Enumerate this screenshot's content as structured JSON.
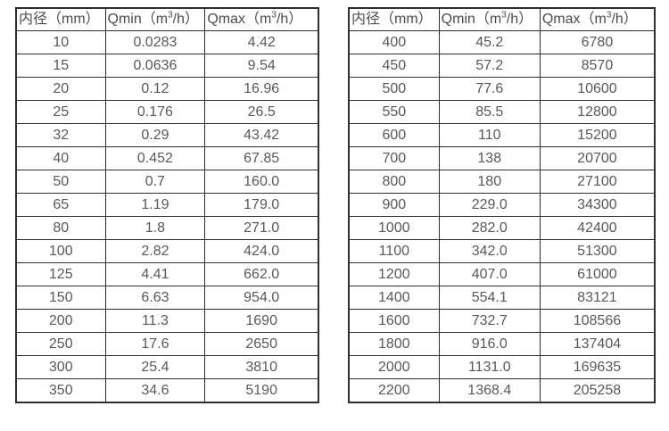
{
  "colors": {
    "background": "#ffffff",
    "border": "#2e2e2e",
    "header_text": "#4d4d4d",
    "cell_text": "#595959"
  },
  "tables": [
    {
      "name": "flow-range-table-small-diameters",
      "headers": [
        {
          "pre": "内径（mm）",
          "sup": "",
          "post": ""
        },
        {
          "pre": "Qmin（m",
          "sup": "3",
          "post": "/h）"
        },
        {
          "pre": "Qmax（m",
          "sup": "3",
          "post": "/h）"
        }
      ],
      "rows": [
        [
          "10",
          "0.0283",
          "4.42"
        ],
        [
          "15",
          "0.0636",
          "9.54"
        ],
        [
          "20",
          "0.12",
          "16.96"
        ],
        [
          "25",
          "0.176",
          "26.5"
        ],
        [
          "32",
          "0.29",
          "43.42"
        ],
        [
          "40",
          "0.452",
          "67.85"
        ],
        [
          "50",
          "0.7",
          "160.0"
        ],
        [
          "65",
          "1.19",
          "179.0"
        ],
        [
          "80",
          "1.8",
          "271.0"
        ],
        [
          "100",
          "2.82",
          "424.0"
        ],
        [
          "125",
          "4.41",
          "662.0"
        ],
        [
          "150",
          "6.63",
          "954.0"
        ],
        [
          "200",
          "11.3",
          "1690"
        ],
        [
          "250",
          "17.6",
          "2650"
        ],
        [
          "300",
          "25.4",
          "3810"
        ],
        [
          "350",
          "34.6",
          "5190"
        ]
      ]
    },
    {
      "name": "flow-range-table-large-diameters",
      "headers": [
        {
          "pre": "内径（mm）",
          "sup": "",
          "post": ""
        },
        {
          "pre": "Qmin（m",
          "sup": "3",
          "post": "/h）"
        },
        {
          "pre": "Qmax（m",
          "sup": "3",
          "post": "/h）"
        }
      ],
      "rows": [
        [
          "400",
          "45.2",
          "6780"
        ],
        [
          "450",
          "57.2",
          "8570"
        ],
        [
          "500",
          "77.6",
          "10600"
        ],
        [
          "550",
          "85.5",
          "12800"
        ],
        [
          "600",
          "110",
          "15200"
        ],
        [
          "700",
          "138",
          "20700"
        ],
        [
          "800",
          "180",
          "27100"
        ],
        [
          "900",
          "229.0",
          "34300"
        ],
        [
          "1000",
          "282.0",
          "42400"
        ],
        [
          "1100",
          "342.0",
          "51300"
        ],
        [
          "1200",
          "407.0",
          "61000"
        ],
        [
          "1400",
          "554.1",
          "83121"
        ],
        [
          "1600",
          "732.7",
          "108566"
        ],
        [
          "1800",
          "916.0",
          "137404"
        ],
        [
          "2000",
          "1131.0",
          "169635"
        ],
        [
          "2200",
          "1368.4",
          "205258"
        ]
      ]
    }
  ]
}
